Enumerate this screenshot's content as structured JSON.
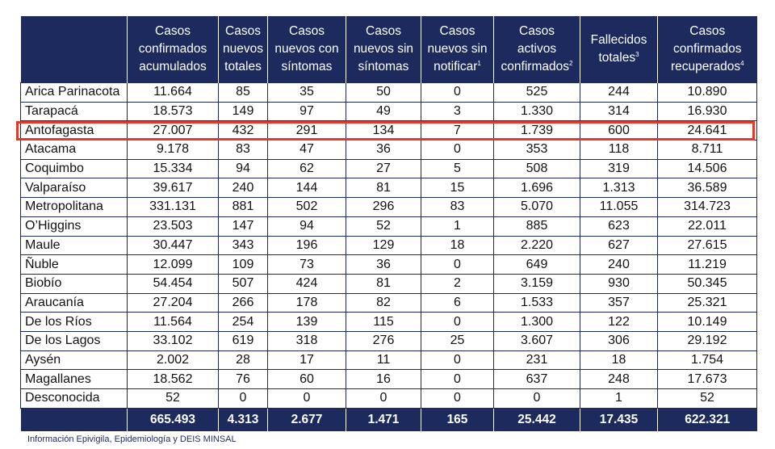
{
  "headers": [
    {
      "text": "",
      "sup": ""
    },
    {
      "text": "Casos\nconfirmados\nacumulados",
      "sup": ""
    },
    {
      "text": "Casos\nnuevos\ntotales",
      "sup": ""
    },
    {
      "text": "Casos\nnuevos con\nsíntomas",
      "sup": ""
    },
    {
      "text": "Casos\nnuevos sin\nsíntomas",
      "sup": ""
    },
    {
      "text": "Casos\nnuevos sin\nnotificar",
      "sup": "1"
    },
    {
      "text": "Casos\nactivos\nconfirmados",
      "sup": "2"
    },
    {
      "text": "Fallecidos\ntotales",
      "sup": "3"
    },
    {
      "text": "Casos\nconfirmados\nrecuperados",
      "sup": "4"
    }
  ],
  "rows": [
    [
      "Arica Parinacota",
      "11.664",
      "85",
      "35",
      "50",
      "0",
      "525",
      "244",
      "10.890"
    ],
    [
      "Tarapacá",
      "18.573",
      "149",
      "97",
      "49",
      "3",
      "1.330",
      "314",
      "16.930"
    ],
    [
      "Antofagasta",
      "27.007",
      "432",
      "291",
      "134",
      "7",
      "1.739",
      "600",
      "24.641"
    ],
    [
      "Atacama",
      "9.178",
      "83",
      "47",
      "36",
      "0",
      "353",
      "118",
      "8.711"
    ],
    [
      "Coquimbo",
      "15.334",
      "94",
      "62",
      "27",
      "5",
      "508",
      "319",
      "14.506"
    ],
    [
      "Valparaíso",
      "39.617",
      "240",
      "144",
      "81",
      "15",
      "1.696",
      "1.313",
      "36.589"
    ],
    [
      "Metropolitana",
      "331.131",
      "881",
      "502",
      "296",
      "83",
      "5.070",
      "11.055",
      "314.723"
    ],
    [
      "O’Higgins",
      "23.503",
      "147",
      "94",
      "52",
      "1",
      "885",
      "623",
      "22.011"
    ],
    [
      "Maule",
      "30.447",
      "343",
      "196",
      "129",
      "18",
      "2.220",
      "627",
      "27.615"
    ],
    [
      "Ñuble",
      "12.099",
      "109",
      "73",
      "36",
      "0",
      "649",
      "240",
      "11.219"
    ],
    [
      "Biobío",
      "54.454",
      "507",
      "424",
      "81",
      "2",
      "3.159",
      "930",
      "50.345"
    ],
    [
      "Araucanía",
      "27.204",
      "266",
      "178",
      "82",
      "6",
      "1.533",
      "357",
      "25.321"
    ],
    [
      "De los Ríos",
      "11.564",
      "254",
      "139",
      "115",
      "0",
      "1.300",
      "122",
      "10.149"
    ],
    [
      "De los Lagos",
      "33.102",
      "619",
      "318",
      "276",
      "25",
      "3.607",
      "306",
      "29.192"
    ],
    [
      "Aysén",
      "2.002",
      "28",
      "17",
      "11",
      "0",
      "231",
      "18",
      "1.754"
    ],
    [
      "Magallanes",
      "18.562",
      "76",
      "60",
      "16",
      "0",
      "637",
      "248",
      "17.673"
    ],
    [
      "Desconocida",
      "52",
      "0",
      "0",
      "0",
      "0",
      "0",
      "1",
      "52"
    ]
  ],
  "totals": [
    "",
    "665.493",
    "4.313",
    "2.677",
    "1.471",
    "165",
    "25.442",
    "17.435",
    "622.321"
  ],
  "source": "Información Epivigila, Epidemiología y DEIS MINSAL",
  "colors": {
    "header_bg": "#1c2a5e",
    "highlight": "#e23a2e"
  }
}
